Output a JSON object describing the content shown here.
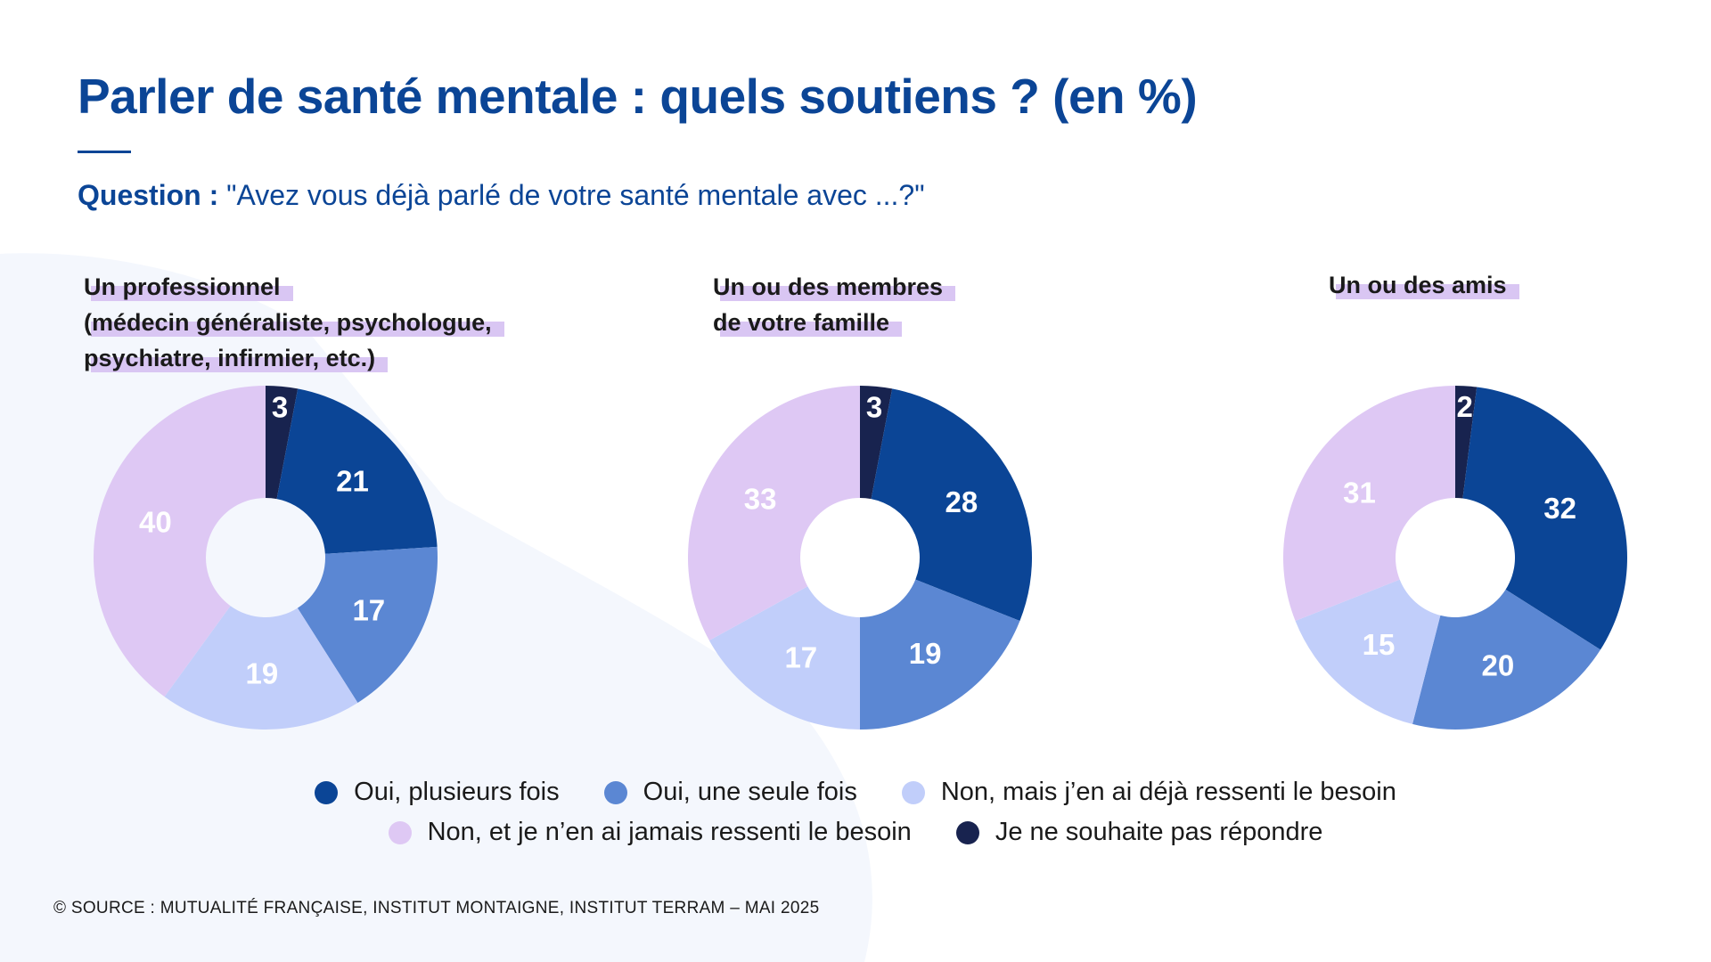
{
  "title": "Parler de santé mentale : quels soutiens ? (en %)",
  "question": {
    "label": "Question :",
    "text": "\"Avez vous déjà parlé de votre santé mentale avec ...?\""
  },
  "colors": {
    "oui_plusieurs": "#0b4596",
    "oui_une": "#5b87d3",
    "non_besoin": "#c1cefa",
    "non_jamais": "#dec8f4",
    "nsp": "#18234f",
    "label_light": "#ffffff"
  },
  "chart_data": [
    {
      "type": "pie",
      "title_lines": [
        "Un professionnel",
        "(médecin généraliste, psychologue,",
        "psychiatre, infirmier, etc.)"
      ],
      "categories": [
        "Je ne souhaite pas répondre",
        "Oui, plusieurs fois",
        "Oui, une seule fois",
        "Non, mais j’en ai déjà ressenti le besoin",
        "Non, et je n’en ai jamais ressenti le besoin"
      ],
      "values": [
        3,
        21,
        17,
        19,
        40
      ]
    },
    {
      "type": "pie",
      "title_lines": [
        "Un ou des membres",
        "de votre famille"
      ],
      "categories": [
        "Je ne souhaite pas répondre",
        "Oui, plusieurs fois",
        "Oui, une seule fois",
        "Non, mais j’en ai déjà ressenti le besoin",
        "Non, et je n’en ai jamais ressenti le besoin"
      ],
      "values": [
        3,
        28,
        19,
        17,
        33
      ]
    },
    {
      "type": "pie",
      "title_lines": [
        "Un ou des amis"
      ],
      "categories": [
        "Je ne souhaite pas répondre",
        "Oui, plusieurs fois",
        "Oui, une seule fois",
        "Non, mais j’en ai déjà ressenti le besoin",
        "Non, et je n’en ai jamais ressenti le besoin"
      ],
      "values": [
        2,
        32,
        20,
        15,
        31
      ]
    }
  ],
  "legend": [
    {
      "label": "Oui, plusieurs fois",
      "color": "#0b4596"
    },
    {
      "label": "Oui, une seule fois",
      "color": "#5b87d3"
    },
    {
      "label": "Non, mais j’en ai déjà ressenti le besoin",
      "color": "#c1cefa"
    },
    {
      "label": "Non, et je n’en ai jamais ressenti le besoin",
      "color": "#dec8f4"
    },
    {
      "label": "Je ne souhaite pas répondre",
      "color": "#18234f"
    }
  ],
  "source": "© SOURCE : MUTUALITÉ FRANÇAISE, INSTITUT MONTAIGNE, INSTITUT TERRAM – MAI 2025"
}
